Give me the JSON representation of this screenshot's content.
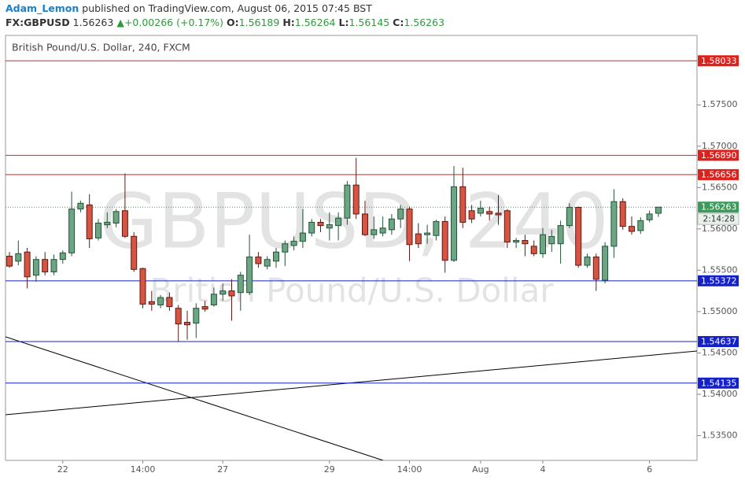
{
  "header": {
    "author": "Adam_Lemon",
    "published": "published on TradingView.com, August 06, 2015 07:45 BST",
    "symbol": "FX:GBPUSD",
    "last": "1.56263",
    "arrow": "▲",
    "change": "+0.00266 (+0.17%)",
    "ohlc": [
      {
        "label": "O:",
        "value": "1.56189"
      },
      {
        "label": "H:",
        "value": "1.56264"
      },
      {
        "label": "L:",
        "value": "1.56145"
      },
      {
        "label": "C:",
        "value": "1.56263"
      }
    ]
  },
  "chart_data": {
    "type": "candlestick",
    "title": "British Pound/U.S. Dollar, 240, FXCM",
    "watermark": [
      "GBPUSD, 240",
      "British Pound/U.S. Dollar"
    ],
    "categories": [
      null,
      null,
      null,
      null,
      null,
      null,
      "22",
      null,
      null,
      null,
      null,
      null,
      null,
      null,
      null,
      "14:00",
      null,
      null,
      null,
      null,
      null,
      null,
      null,
      null,
      "27",
      null,
      null,
      null,
      null,
      null,
      null,
      null,
      null,
      null,
      null,
      null,
      "29",
      null,
      null,
      null,
      null,
      null,
      null,
      null,
      null,
      "14:00",
      null,
      null,
      null,
      null,
      null,
      null,
      null,
      "Aug",
      null,
      null,
      null,
      null,
      null,
      null,
      "4",
      null,
      null,
      null,
      null,
      null,
      null,
      null,
      null,
      null,
      null,
      null,
      "6",
      null
    ],
    "open": [
      1.5567,
      1.5561,
      1.5572,
      1.5544,
      1.5563,
      1.5548,
      1.5563,
      1.5571,
      1.5624,
      1.5629,
      1.5589,
      1.5605,
      1.5607,
      1.5622,
      1.5591,
      1.5552,
      1.5512,
      1.5508,
      1.5517,
      1.5504,
      1.5487,
      1.5486,
      1.5506,
      1.5508,
      1.5521,
      1.5525,
      1.5523,
      1.5523,
      1.5566,
      1.5555,
      1.5561,
      1.5572,
      1.558,
      1.5585,
      1.5595,
      1.5608,
      1.5601,
      1.5604,
      1.5613,
      1.5653,
      1.5618,
      1.5593,
      1.5595,
      1.5599,
      1.5612,
      1.5624,
      1.5594,
      1.5593,
      1.5592,
      1.5609,
      1.5562,
      1.5651,
      1.5622,
      1.5619,
      1.5621,
      1.5619,
      1.5622,
      1.5584,
      1.5586,
      1.5579,
      1.557,
      1.5582,
      1.5582,
      1.5604,
      1.5626,
      1.5556,
      1.5566,
      1.5538,
      1.5579,
      1.5633,
      1.5603,
      1.5598,
      1.5611,
      1.56189
    ],
    "high": [
      1.5572,
      1.5586,
      1.5577,
      1.5567,
      1.5572,
      1.5569,
      1.5574,
      1.5645,
      1.5634,
      1.5642,
      1.5612,
      1.562,
      1.5624,
      1.5667,
      1.5596,
      1.5553,
      1.5525,
      1.552,
      1.5523,
      1.5508,
      1.5501,
      1.551,
      1.5513,
      1.5529,
      1.5534,
      1.5539,
      1.5548,
      1.5593,
      1.5572,
      1.5567,
      1.5577,
      1.5586,
      1.5591,
      1.5624,
      1.5612,
      1.5612,
      1.562,
      1.562,
      1.5658,
      1.5686,
      1.5634,
      1.5615,
      1.5615,
      1.5618,
      1.5629,
      1.5627,
      1.5607,
      1.5605,
      1.5611,
      1.5615,
      1.5676,
      1.5674,
      1.5629,
      1.5634,
      1.5627,
      1.5641,
      1.5624,
      1.5589,
      1.5593,
      1.5586,
      1.5601,
      1.5599,
      1.561,
      1.5631,
      1.5627,
      1.557,
      1.557,
      1.5584,
      1.5648,
      1.5637,
      1.5615,
      1.5614,
      1.5622,
      1.56264
    ],
    "low": [
      1.5553,
      1.5556,
      1.5528,
      1.5536,
      1.5544,
      1.5544,
      1.5558,
      1.5567,
      1.562,
      1.5577,
      1.5586,
      1.5601,
      1.5602,
      1.5589,
      1.5548,
      1.5504,
      1.5501,
      1.5504,
      1.5501,
      1.5464,
      1.5466,
      1.5468,
      1.55,
      1.5506,
      1.5513,
      1.5489,
      1.5501,
      1.552,
      1.5553,
      1.5551,
      1.5553,
      1.5555,
      1.5574,
      1.5577,
      1.5591,
      1.5596,
      1.5586,
      1.5586,
      1.5605,
      1.5612,
      1.5591,
      1.5588,
      1.5591,
      1.5593,
      1.5601,
      1.5561,
      1.5577,
      1.5582,
      1.5586,
      1.5547,
      1.556,
      1.5601,
      1.5607,
      1.5615,
      1.561,
      1.5605,
      1.5577,
      1.5577,
      1.5567,
      1.5567,
      1.5565,
      1.5572,
      1.5558,
      1.5601,
      1.5553,
      1.5553,
      1.5525,
      1.5534,
      1.5565,
      1.5599,
      1.5593,
      1.5594,
      1.5608,
      1.56145
    ],
    "close": [
      1.5555,
      1.557,
      1.5542,
      1.5563,
      1.5548,
      1.5563,
      1.5571,
      1.5624,
      1.5631,
      1.5588,
      1.5607,
      1.5608,
      1.5621,
      1.5591,
      1.5551,
      1.5509,
      1.5509,
      1.5517,
      1.5506,
      1.5485,
      1.5484,
      1.5504,
      1.5503,
      1.5521,
      1.5525,
      1.5519,
      1.5544,
      1.5566,
      1.5558,
      1.5563,
      1.5572,
      1.5582,
      1.5585,
      1.5595,
      1.5608,
      1.5604,
      1.5605,
      1.5613,
      1.5653,
      1.5618,
      1.5593,
      1.5599,
      1.5601,
      1.5612,
      1.5624,
      1.5581,
      1.5582,
      1.5595,
      1.5609,
      1.5562,
      1.5651,
      1.5608,
      1.5612,
      1.5625,
      1.5618,
      1.5617,
      1.5584,
      1.5586,
      1.5582,
      1.557,
      1.5593,
      1.5591,
      1.5604,
      1.5626,
      1.5556,
      1.5566,
      1.5539,
      1.5579,
      1.5633,
      1.5603,
      1.5597,
      1.561,
      1.5618,
      1.56263
    ],
    "up_color": "#6ba583",
    "up_border": "#225437",
    "down_color": "#d75442",
    "down_border": "#5b1a13",
    "ylim": [
      1.532,
      1.5834
    ],
    "yticks": [
      {
        "value": 1.535,
        "label": "1.53500"
      },
      {
        "value": 1.54,
        "label": "1.54000"
      },
      {
        "value": 1.545,
        "label": "1.54500"
      },
      {
        "value": 1.55,
        "label": "1.55000"
      },
      {
        "value": 1.555,
        "label": "1.55500"
      },
      {
        "value": 1.56,
        "label": "1.56000"
      },
      {
        "value": 1.565,
        "label": "1.56500"
      },
      {
        "value": 1.57,
        "label": "1.57000"
      },
      {
        "value": 1.575,
        "label": "1.57500"
      }
    ],
    "hlines": [
      {
        "value": 1.58033,
        "label": "1.58033",
        "color": "#e0201b"
      },
      {
        "value": 1.5689,
        "label": "1.56890",
        "color": "#e0201b"
      },
      {
        "value": 1.56656,
        "label": "1.56656",
        "color": "#e0201b"
      },
      {
        "value": 1.55372,
        "label": "1.55372",
        "color": "#1420c8"
      },
      {
        "value": 1.54637,
        "label": "1.54637",
        "color": "#1420c8"
      },
      {
        "value": 1.54135,
        "label": "1.54135",
        "color": "#1420c8"
      }
    ],
    "price_label": {
      "value": 1.56263,
      "label": "1.56263",
      "countdown": "2:14:28",
      "color": "#3c9b5b"
    },
    "grid": false
  }
}
